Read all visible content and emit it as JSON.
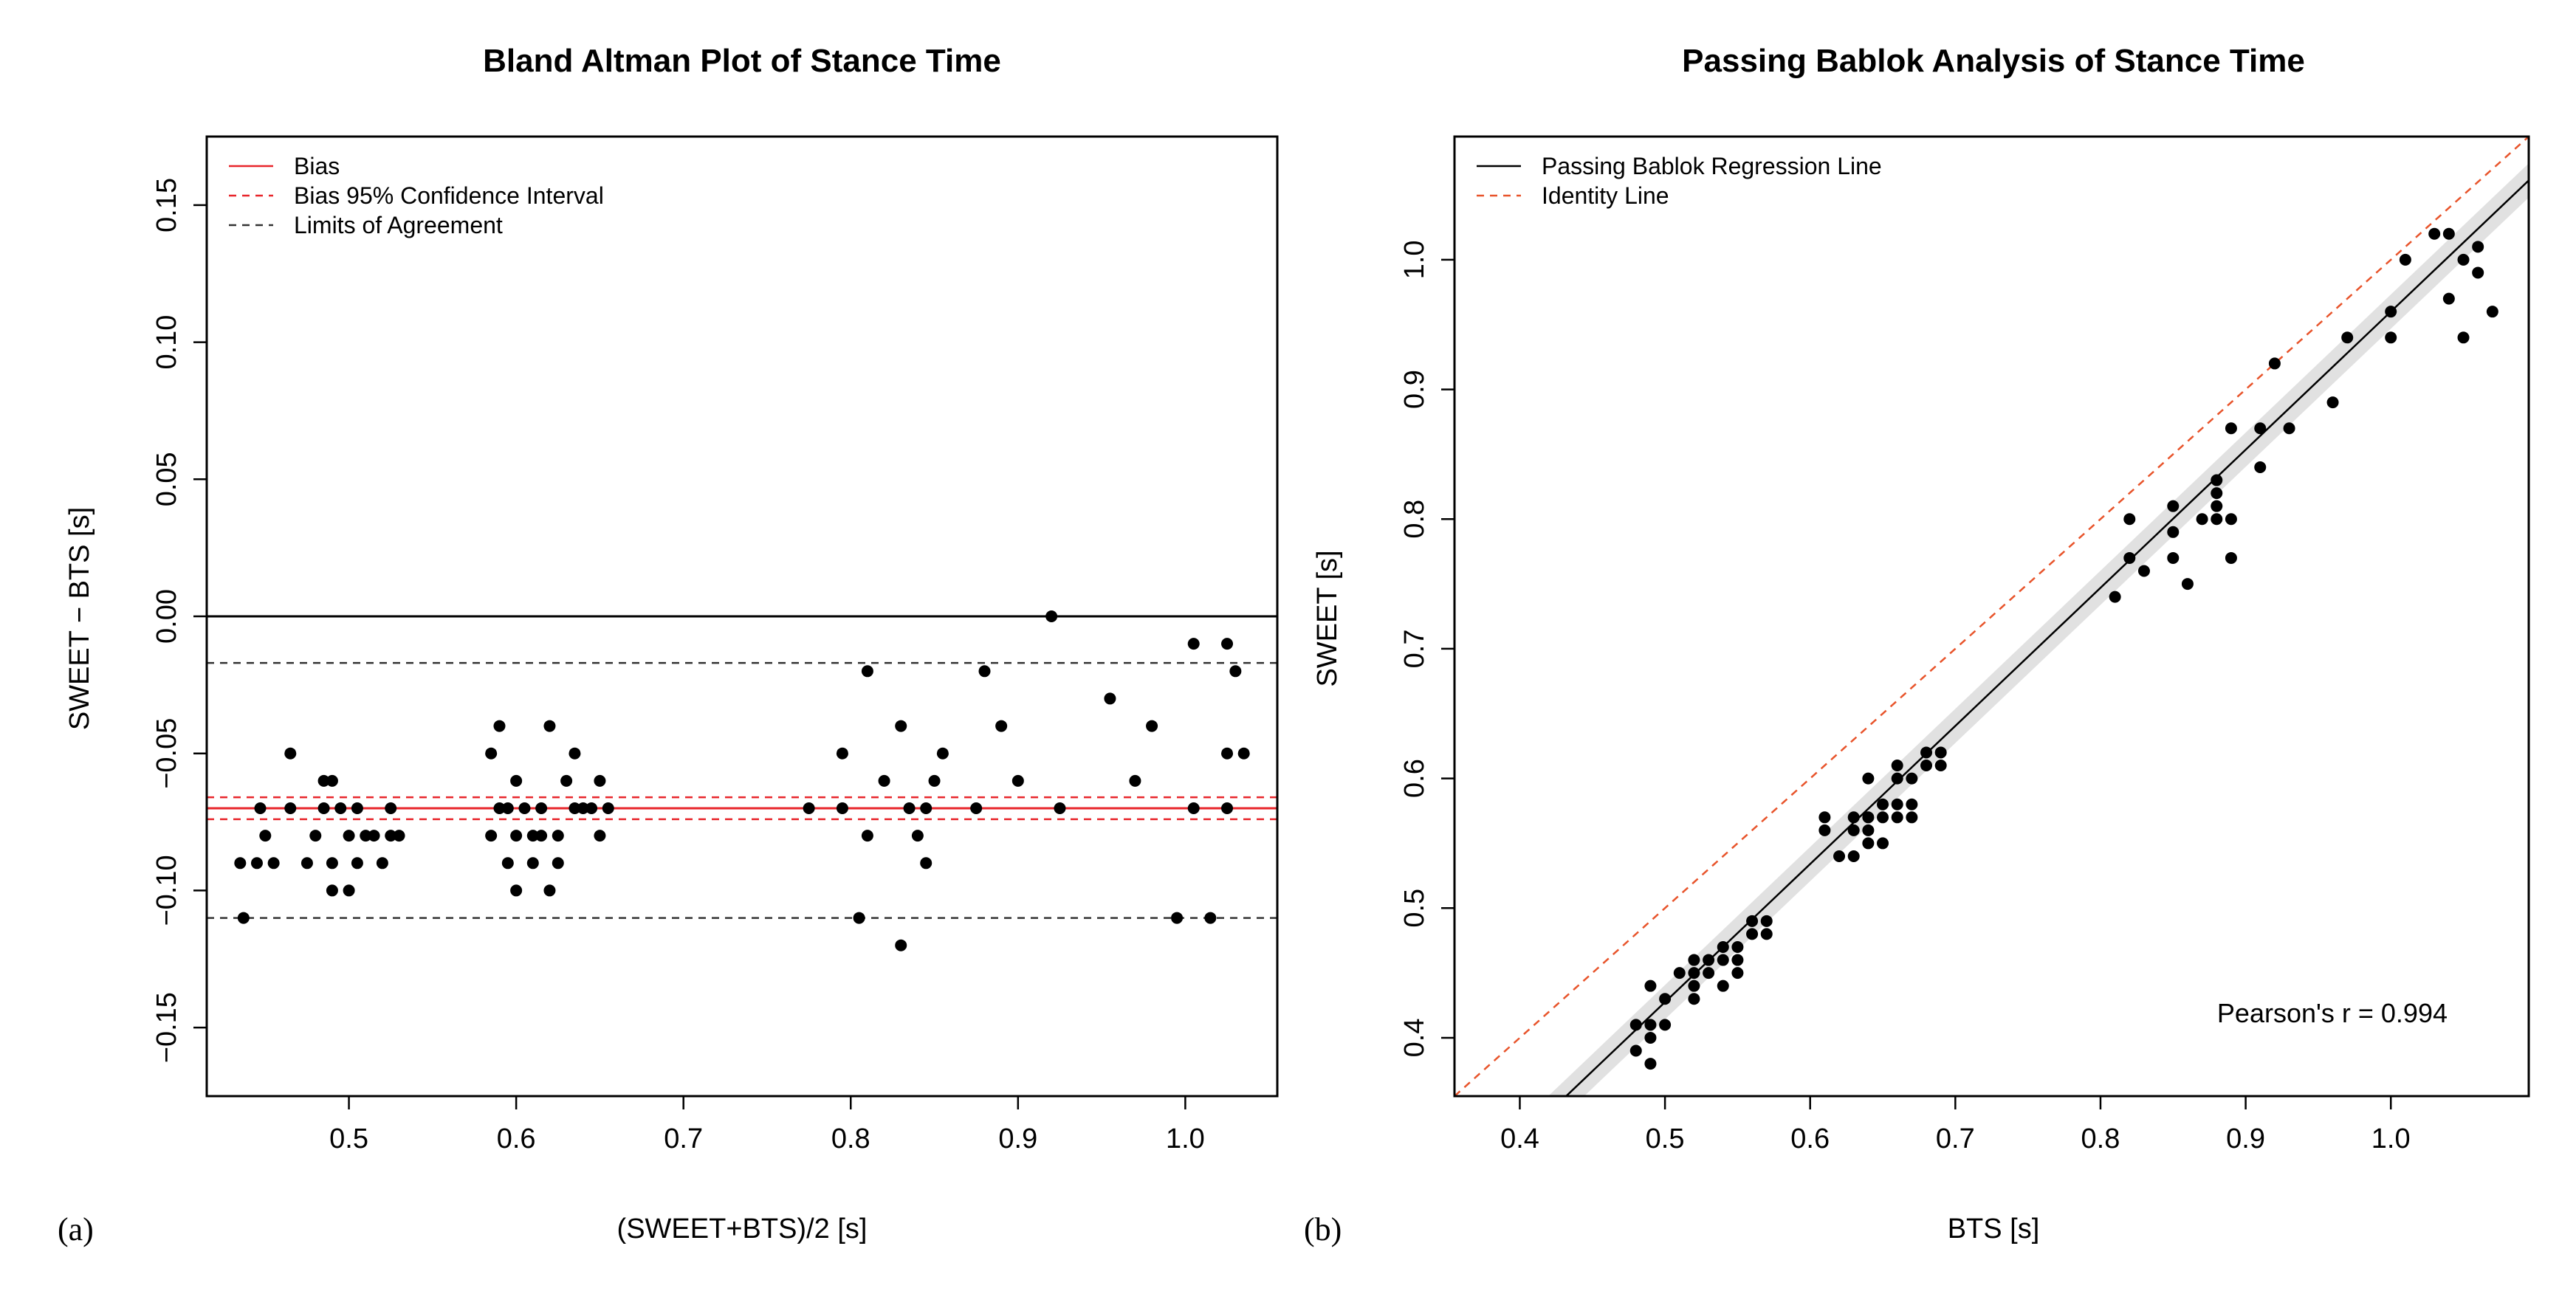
{
  "chart_data": [
    {
      "type": "scatter",
      "panel_label": "(a)",
      "title": "Bland Altman Plot of Stance Time",
      "xlabel": "(SWEET+BTS)/2 [s]",
      "ylabel": "SWEET − BTS [s]",
      "xlim": [
        0.415,
        1.055
      ],
      "ylim": [
        -0.175,
        0.175
      ],
      "xticks": [
        0.5,
        0.6,
        0.7,
        0.8,
        0.9,
        1.0
      ],
      "xtick_labels": [
        "0.5",
        "0.6",
        "0.7",
        "0.8",
        "0.9",
        "1.0"
      ],
      "yticks": [
        -0.15,
        -0.1,
        -0.05,
        0.0,
        0.05,
        0.1,
        0.15
      ],
      "ytick_labels": [
        "−0.15",
        "−0.10",
        "−0.05",
        "0.00",
        "0.05",
        "0.10",
        "0.15"
      ],
      "zero_line": 0.0,
      "bias": -0.07,
      "bias_ci": [
        -0.074,
        -0.066
      ],
      "limits_of_agreement": [
        -0.11,
        -0.017
      ],
      "legend": [
        {
          "label": "Bias",
          "style": "solid",
          "color": "#e8262b"
        },
        {
          "label": "Bias 95% Confidence Interval",
          "style": "dashed",
          "color": "#e8262b"
        },
        {
          "label": "Limits of Agreement",
          "style": "dashed",
          "color": "#333333"
        }
      ],
      "points": [
        [
          0.435,
          -0.09
        ],
        [
          0.437,
          -0.11
        ],
        [
          0.445,
          -0.09
        ],
        [
          0.447,
          -0.07
        ],
        [
          0.45,
          -0.08
        ],
        [
          0.455,
          -0.09
        ],
        [
          0.465,
          -0.05
        ],
        [
          0.465,
          -0.07
        ],
        [
          0.475,
          -0.09
        ],
        [
          0.48,
          -0.08
        ],
        [
          0.485,
          -0.06
        ],
        [
          0.485,
          -0.07
        ],
        [
          0.49,
          -0.09
        ],
        [
          0.49,
          -0.1
        ],
        [
          0.49,
          -0.06
        ],
        [
          0.495,
          -0.07
        ],
        [
          0.5,
          -0.08
        ],
        [
          0.5,
          -0.1
        ],
        [
          0.505,
          -0.09
        ],
        [
          0.505,
          -0.07
        ],
        [
          0.51,
          -0.08
        ],
        [
          0.515,
          -0.08
        ],
        [
          0.52,
          -0.09
        ],
        [
          0.525,
          -0.07
        ],
        [
          0.525,
          -0.08
        ],
        [
          0.53,
          -0.08
        ],
        [
          0.585,
          -0.05
        ],
        [
          0.585,
          -0.08
        ],
        [
          0.59,
          -0.04
        ],
        [
          0.59,
          -0.07
        ],
        [
          0.595,
          -0.09
        ],
        [
          0.595,
          -0.07
        ],
        [
          0.6,
          -0.06
        ],
        [
          0.6,
          -0.08
        ],
        [
          0.6,
          -0.1
        ],
        [
          0.605,
          -0.07
        ],
        [
          0.61,
          -0.09
        ],
        [
          0.61,
          -0.08
        ],
        [
          0.615,
          -0.07
        ],
        [
          0.615,
          -0.08
        ],
        [
          0.62,
          -0.04
        ],
        [
          0.62,
          -0.1
        ],
        [
          0.625,
          -0.08
        ],
        [
          0.625,
          -0.09
        ],
        [
          0.63,
          -0.06
        ],
        [
          0.635,
          -0.07
        ],
        [
          0.635,
          -0.05
        ],
        [
          0.64,
          -0.07
        ],
        [
          0.645,
          -0.07
        ],
        [
          0.65,
          -0.06
        ],
        [
          0.65,
          -0.08
        ],
        [
          0.655,
          -0.07
        ],
        [
          0.775,
          -0.07
        ],
        [
          0.795,
          -0.05
        ],
        [
          0.795,
          -0.07
        ],
        [
          0.805,
          -0.11
        ],
        [
          0.81,
          -0.02
        ],
        [
          0.81,
          -0.08
        ],
        [
          0.82,
          -0.06
        ],
        [
          0.83,
          -0.12
        ],
        [
          0.83,
          -0.04
        ],
        [
          0.835,
          -0.07
        ],
        [
          0.84,
          -0.08
        ],
        [
          0.845,
          -0.09
        ],
        [
          0.845,
          -0.07
        ],
        [
          0.85,
          -0.06
        ],
        [
          0.855,
          -0.05
        ],
        [
          0.875,
          -0.07
        ],
        [
          0.88,
          -0.02
        ],
        [
          0.89,
          -0.04
        ],
        [
          0.9,
          -0.06
        ],
        [
          0.92,
          0.0
        ],
        [
          0.925,
          -0.07
        ],
        [
          0.955,
          -0.03
        ],
        [
          0.97,
          -0.06
        ],
        [
          0.98,
          -0.04
        ],
        [
          0.995,
          -0.11
        ],
        [
          1.005,
          -0.01
        ],
        [
          1.005,
          -0.07
        ],
        [
          1.015,
          -0.11
        ],
        [
          1.025,
          -0.01
        ],
        [
          1.025,
          -0.07
        ],
        [
          1.025,
          -0.05
        ],
        [
          1.03,
          -0.02
        ],
        [
          1.035,
          -0.05
        ]
      ]
    },
    {
      "type": "scatter",
      "panel_label": "(b)",
      "title": "Passing Bablok Analysis of Stance Time",
      "xlabel": "BTS [s]",
      "ylabel": "SWEET [s]",
      "xlim": [
        0.355,
        1.095
      ],
      "ylim": [
        0.355,
        1.095
      ],
      "xticks": [
        0.4,
        0.5,
        0.6,
        0.7,
        0.8,
        0.9,
        1.0
      ],
      "xtick_labels": [
        "0.4",
        "0.5",
        "0.6",
        "0.7",
        "0.8",
        "0.9",
        "1.0"
      ],
      "yticks": [
        0.4,
        0.5,
        0.6,
        0.7,
        0.8,
        0.9,
        1.0
      ],
      "ytick_labels": [
        "0.4",
        "0.5",
        "0.6",
        "0.7",
        "0.8",
        "0.9",
        "1.0"
      ],
      "regression": {
        "intercept": -0.105,
        "slope": 1.065
      },
      "annotation": "Pearson's r = 0.994",
      "legend": [
        {
          "label": "Passing Bablok Regression Line",
          "style": "solid",
          "color": "#000000"
        },
        {
          "label": "Identity Line",
          "style": "dashed",
          "color": "#e8542b"
        }
      ],
      "points": [
        [
          0.48,
          0.39
        ],
        [
          0.48,
          0.41
        ],
        [
          0.49,
          0.38
        ],
        [
          0.49,
          0.4
        ],
        [
          0.49,
          0.41
        ],
        [
          0.49,
          0.44
        ],
        [
          0.5,
          0.41
        ],
        [
          0.5,
          0.43
        ],
        [
          0.51,
          0.45
        ],
        [
          0.52,
          0.43
        ],
        [
          0.52,
          0.44
        ],
        [
          0.52,
          0.45
        ],
        [
          0.52,
          0.46
        ],
        [
          0.53,
          0.45
        ],
        [
          0.53,
          0.46
        ],
        [
          0.54,
          0.44
        ],
        [
          0.54,
          0.46
        ],
        [
          0.54,
          0.47
        ],
        [
          0.55,
          0.45
        ],
        [
          0.55,
          0.46
        ],
        [
          0.55,
          0.47
        ],
        [
          0.56,
          0.48
        ],
        [
          0.56,
          0.49
        ],
        [
          0.57,
          0.48
        ],
        [
          0.57,
          0.49
        ],
        [
          0.61,
          0.56
        ],
        [
          0.61,
          0.57
        ],
        [
          0.62,
          0.54
        ],
        [
          0.63,
          0.54
        ],
        [
          0.63,
          0.56
        ],
        [
          0.63,
          0.57
        ],
        [
          0.64,
          0.55
        ],
        [
          0.64,
          0.56
        ],
        [
          0.64,
          0.57
        ],
        [
          0.64,
          0.6
        ],
        [
          0.65,
          0.55
        ],
        [
          0.65,
          0.57
        ],
        [
          0.65,
          0.58
        ],
        [
          0.66,
          0.57
        ],
        [
          0.66,
          0.58
        ],
        [
          0.66,
          0.6
        ],
        [
          0.66,
          0.61
        ],
        [
          0.67,
          0.57
        ],
        [
          0.67,
          0.58
        ],
        [
          0.67,
          0.6
        ],
        [
          0.68,
          0.61
        ],
        [
          0.68,
          0.62
        ],
        [
          0.69,
          0.61
        ],
        [
          0.69,
          0.62
        ],
        [
          0.81,
          0.74
        ],
        [
          0.82,
          0.77
        ],
        [
          0.82,
          0.8
        ],
        [
          0.83,
          0.76
        ],
        [
          0.85,
          0.77
        ],
        [
          0.85,
          0.79
        ],
        [
          0.85,
          0.81
        ],
        [
          0.86,
          0.75
        ],
        [
          0.87,
          0.8
        ],
        [
          0.88,
          0.8
        ],
        [
          0.88,
          0.81
        ],
        [
          0.88,
          0.82
        ],
        [
          0.88,
          0.83
        ],
        [
          0.89,
          0.77
        ],
        [
          0.89,
          0.8
        ],
        [
          0.89,
          0.87
        ],
        [
          0.91,
          0.84
        ],
        [
          0.91,
          0.87
        ],
        [
          0.92,
          0.92
        ],
        [
          0.93,
          0.87
        ],
        [
          0.96,
          0.89
        ],
        [
          0.97,
          0.94
        ],
        [
          1.0,
          0.94
        ],
        [
          1.0,
          0.96
        ],
        [
          1.01,
          1.0
        ],
        [
          1.03,
          1.02
        ],
        [
          1.04,
          0.97
        ],
        [
          1.04,
          1.02
        ],
        [
          1.05,
          0.94
        ],
        [
          1.05,
          1.0
        ],
        [
          1.06,
          0.99
        ],
        [
          1.06,
          1.01
        ],
        [
          1.07,
          0.96
        ]
      ]
    }
  ]
}
